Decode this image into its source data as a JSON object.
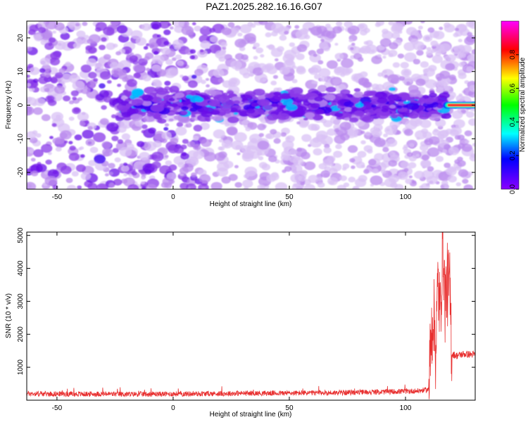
{
  "title": "PAZ1.2025.282.16.16.G07",
  "chart_data": [
    {
      "type": "heatmap",
      "xlabel": "Height of straight line (km)",
      "ylabel": "Frequency (Hz)",
      "xlim": [
        -63,
        130
      ],
      "ylim": [
        -25,
        25
      ],
      "xticks": [
        -50,
        0,
        50,
        100
      ],
      "yticks": [
        -20,
        -10,
        0,
        10,
        20
      ],
      "colorbar": {
        "label": "Normalized spectral amplitude",
        "range": [
          0.0,
          1.0
        ],
        "ticks": [
          0.0,
          0.2,
          0.4,
          0.6,
          0.8
        ],
        "colormap": "rainbow (purple-blue-cyan-green-yellow-red-magenta)"
      },
      "signal_band": {
        "x_range": [
          -22,
          130
        ],
        "freq_center_hz": 0,
        "freq_halfwidth_hz": 3,
        "peak_amplitude_region_x": [
          118,
          130
        ],
        "peak_amplitude": 0.9
      }
    },
    {
      "type": "line",
      "xlabel": "Height of straight line (km)",
      "ylabel": "SNR (10 * v/v)",
      "xlim": [
        -63,
        130
      ],
      "ylim": [
        0,
        5100
      ],
      "xticks": [
        -50,
        0,
        50,
        100
      ],
      "yticks": [
        1000,
        2000,
        3000,
        4000,
        5000
      ],
      "series": [
        {
          "color": "#e83030",
          "x": [
            -63,
            -50,
            -40,
            -30,
            -20,
            -10,
            0,
            10,
            20,
            30,
            40,
            50,
            60,
            70,
            80,
            90,
            100,
            105,
            110,
            111,
            112,
            113,
            114,
            115,
            116,
            117,
            118,
            119,
            120,
            122,
            125,
            130
          ],
          "y": [
            200,
            190,
            185,
            190,
            180,
            185,
            190,
            195,
            200,
            210,
            210,
            215,
            220,
            225,
            240,
            250,
            270,
            280,
            320,
            1800,
            2800,
            1500,
            3600,
            2500,
            5000,
            3000,
            3500,
            3400,
            1400,
            1350,
            1400,
            1380
          ]
        }
      ]
    }
  ]
}
